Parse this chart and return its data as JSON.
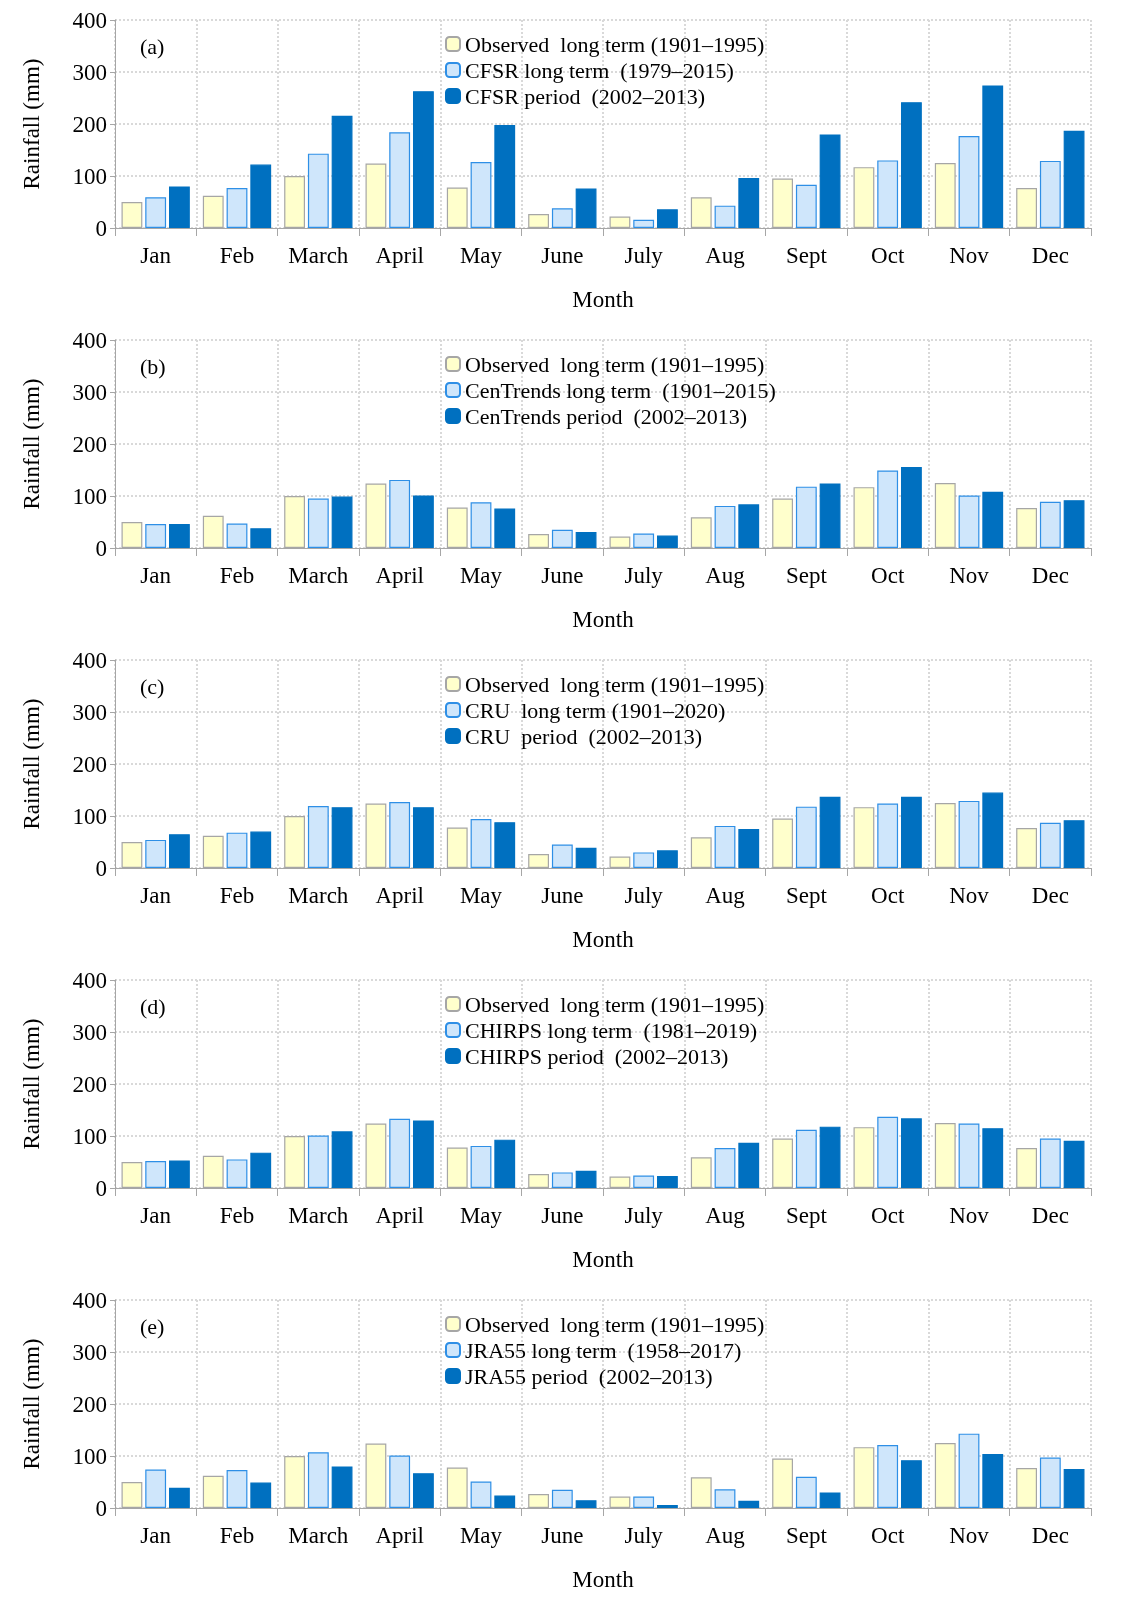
{
  "chart_data": [
    {
      "type": "bar",
      "title": "(a)",
      "xlabel": "Month",
      "ylabel": "Rainfall (mm)",
      "categories": [
        "Jan",
        "Feb",
        "March",
        "April",
        "May",
        "June",
        "July",
        "Aug",
        "Sept",
        "Oct",
        "Nov",
        "Dec"
      ],
      "ylim": [
        0,
        400
      ],
      "yticks": [
        0,
        100,
        200,
        300,
        400
      ],
      "grid": true,
      "legend": "top",
      "series": [
        {
          "name": "Observed  long term (1901–1995)",
          "color": "#ffffcc",
          "values": [
            50,
            62,
            100,
            124,
            78,
            27,
            22,
            59,
            95,
            117,
            125,
            77
          ]
        },
        {
          "name": "CFSR long term  (1979–2015)",
          "color": "#cfe6fb",
          "values": [
            59,
            77,
            143,
            184,
            127,
            38,
            16,
            43,
            83,
            130,
            177,
            129
          ]
        },
        {
          "name": "CFSR period  (2002–2013)",
          "color": "#0070c0",
          "values": [
            80,
            122,
            216,
            263,
            198,
            76,
            36,
            96,
            180,
            242,
            274,
            187
          ]
        }
      ]
    },
    {
      "type": "bar",
      "title": "(b)",
      "xlabel": "Month",
      "ylabel": "Rainfall (mm)",
      "categories": [
        "Jan",
        "Feb",
        "March",
        "April",
        "May",
        "June",
        "July",
        "Aug",
        "Sept",
        "Oct",
        "Nov",
        "Dec"
      ],
      "ylim": [
        0,
        400
      ],
      "yticks": [
        0,
        100,
        200,
        300,
        400
      ],
      "grid": true,
      "legend": "top",
      "series": [
        {
          "name": "Observed  long term (1901–1995)",
          "color": "#ffffcc",
          "values": [
            50,
            62,
            100,
            124,
            78,
            27,
            22,
            59,
            95,
            117,
            125,
            77
          ]
        },
        {
          "name": "CenTrends long term  (1901–2015)",
          "color": "#cfe6fb",
          "values": [
            46,
            47,
            95,
            131,
            88,
            35,
            28,
            81,
            118,
            149,
            101,
            89
          ]
        },
        {
          "name": "CenTrends period  (2002–2013)",
          "color": "#0070c0",
          "values": [
            46,
            38,
            99,
            101,
            76,
            31,
            24,
            84,
            124,
            156,
            108,
            92
          ]
        }
      ]
    },
    {
      "type": "bar",
      "title": "(c)",
      "xlabel": "Month",
      "ylabel": "Rainfall (mm)",
      "categories": [
        "Jan",
        "Feb",
        "March",
        "April",
        "May",
        "June",
        "July",
        "Aug",
        "Sept",
        "Oct",
        "Nov",
        "Dec"
      ],
      "ylim": [
        0,
        400
      ],
      "yticks": [
        0,
        100,
        200,
        300,
        400
      ],
      "grid": true,
      "legend": "top",
      "series": [
        {
          "name": "Observed  long term (1901–1995)",
          "color": "#ffffcc",
          "values": [
            50,
            62,
            100,
            124,
            78,
            27,
            22,
            59,
            95,
            117,
            125,
            77
          ]
        },
        {
          "name": "CRU  long term (1901–2020)",
          "color": "#cfe6fb",
          "values": [
            54,
            68,
            119,
            127,
            94,
            45,
            30,
            81,
            118,
            124,
            129,
            87
          ]
        },
        {
          "name": "CRU  period  (2002–2013)",
          "color": "#0070c0",
          "values": [
            65,
            70,
            117,
            117,
            88,
            39,
            34,
            75,
            137,
            137,
            145,
            92
          ]
        }
      ]
    },
    {
      "type": "bar",
      "title": "(d)",
      "xlabel": "Month",
      "ylabel": "Rainfall (mm)",
      "categories": [
        "Jan",
        "Feb",
        "March",
        "April",
        "May",
        "June",
        "July",
        "Aug",
        "Sept",
        "Oct",
        "Nov",
        "Dec"
      ],
      "ylim": [
        0,
        400
      ],
      "yticks": [
        0,
        100,
        200,
        300,
        400
      ],
      "grid": true,
      "legend": "top",
      "series": [
        {
          "name": "Observed  long term (1901–1995)",
          "color": "#ffffcc",
          "values": [
            50,
            62,
            100,
            124,
            78,
            27,
            22,
            59,
            95,
            117,
            125,
            77
          ]
        },
        {
          "name": "CHIRPS long term  (1981–2019)",
          "color": "#cfe6fb",
          "values": [
            52,
            55,
            101,
            133,
            81,
            30,
            24,
            77,
            112,
            137,
            124,
            95
          ]
        },
        {
          "name": "CHIRPS period  (2002–2013)",
          "color": "#0070c0",
          "values": [
            53,
            68,
            109,
            130,
            93,
            33,
            23,
            87,
            118,
            134,
            115,
            91
          ]
        }
      ]
    },
    {
      "type": "bar",
      "title": "(e)",
      "xlabel": "Month",
      "ylabel": "Rainfall (mm)",
      "categories": [
        "Jan",
        "Feb",
        "March",
        "April",
        "May",
        "June",
        "July",
        "Aug",
        "Sept",
        "Oct",
        "Nov",
        "Dec"
      ],
      "ylim": [
        0,
        400
      ],
      "yticks": [
        0,
        100,
        200,
        300,
        400
      ],
      "grid": true,
      "legend": "top",
      "series": [
        {
          "name": "Observed  long term (1901–1995)",
          "color": "#ffffcc",
          "values": [
            50,
            62,
            100,
            124,
            78,
            27,
            22,
            59,
            95,
            117,
            125,
            77
          ]
        },
        {
          "name": "JRA55 long term  (1958–2017)",
          "color": "#cfe6fb",
          "values": [
            74,
            73,
            107,
            101,
            51,
            35,
            22,
            36,
            60,
            121,
            143,
            97
          ]
        },
        {
          "name": "JRA55 period  (2002–2013)",
          "color": "#0070c0",
          "values": [
            39,
            49,
            80,
            67,
            24,
            15,
            6,
            14,
            30,
            92,
            104,
            75
          ]
        }
      ]
    }
  ]
}
